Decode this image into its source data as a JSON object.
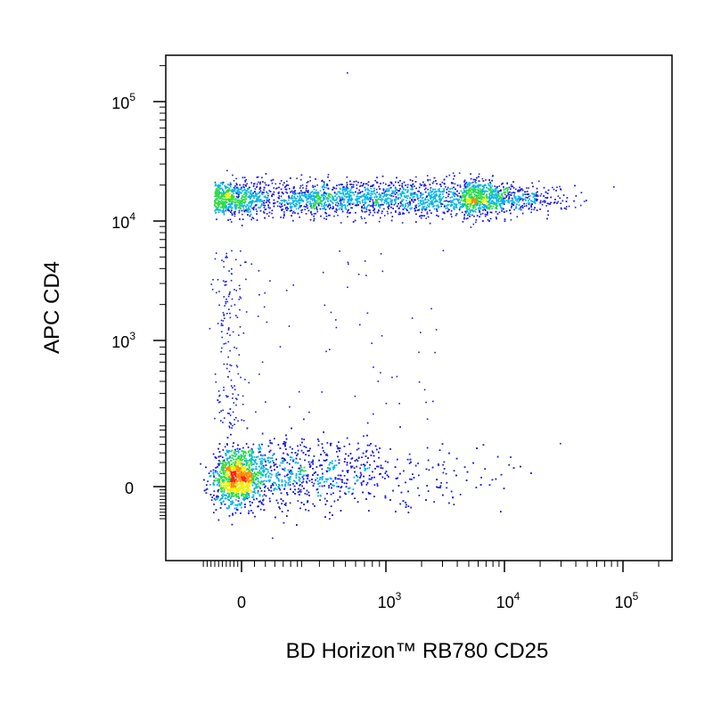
{
  "chart_data": {
    "type": "scatter",
    "subtype": "flow-cytometry-density-dot-plot",
    "xlabel": "BD Horizon™ RB780 CD25",
    "ylabel": "APC CD4",
    "x_scale": "biexponential",
    "y_scale": "biexponential",
    "xlim": [
      -400,
      250000
    ],
    "ylim": [
      -500,
      250000
    ],
    "x_ticks": [
      {
        "value": 0,
        "label": "0",
        "sup": ""
      },
      {
        "value": 1000,
        "label": "10",
        "sup": "3"
      },
      {
        "value": 10000,
        "label": "10",
        "sup": "4"
      },
      {
        "value": 100000,
        "label": "10",
        "sup": "5"
      }
    ],
    "y_ticks": [
      {
        "value": 0,
        "label": "0",
        "sup": ""
      },
      {
        "value": 1000,
        "label": "10",
        "sup": "3"
      },
      {
        "value": 10000,
        "label": "10",
        "sup": "4"
      },
      {
        "value": 100000,
        "label": "10",
        "sup": "5"
      }
    ],
    "grid": false,
    "color_scale": [
      "#1a1adc",
      "#00b4e6",
      "#2cdc4a",
      "#f0f000",
      "#ff8c00",
      "#ff2020"
    ],
    "populations": [
      {
        "id": "cd4-pos-cd25-low-to-high",
        "x_range": [
          -150,
          45000
        ],
        "y_center": 13500,
        "peak_x": 1500,
        "peak_density": "yellow-orange"
      },
      {
        "id": "cd4-neg-cd25-neg",
        "x_range": [
          -150,
          6000
        ],
        "y_center": 0,
        "peak_x": 0,
        "peak_density": "red"
      }
    ]
  }
}
